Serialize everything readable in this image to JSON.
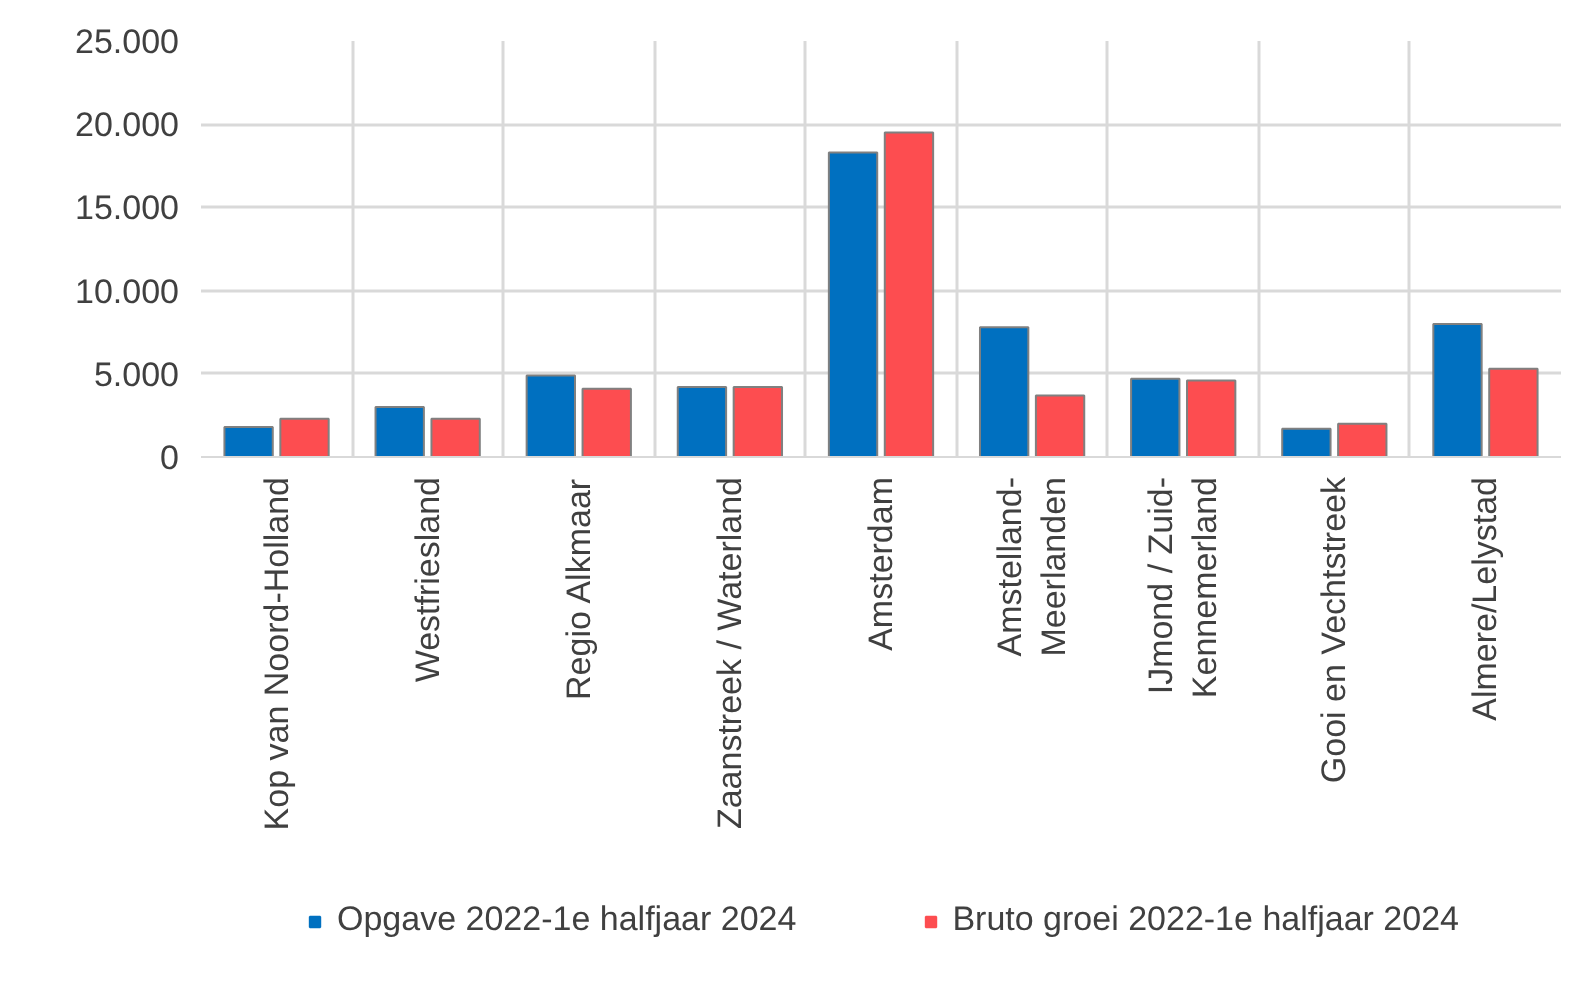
{
  "chart_data": {
    "type": "bar",
    "categories": [
      "Kop van Noord-Holland",
      "Westfriesland",
      "Regio Alkmaar",
      "Zaanstreek / Waterland",
      "Amsterdam",
      "Amstelland-\nMeerlanden",
      "IJmond / Zuid-\nKennemerland",
      "Gooi en Vechtstreek",
      "Almere/Lelystad"
    ],
    "series": [
      {
        "name": "Opgave 2022-1e halfjaar 2024",
        "color": "#0070c0",
        "values": [
          1800,
          3000,
          4900,
          4200,
          18300,
          7800,
          4700,
          1700,
          8000
        ]
      },
      {
        "name": "Bruto groei 2022-1e halfjaar 2024",
        "color": "#fd4d50",
        "values": [
          2300,
          2300,
          4100,
          4200,
          19500,
          3700,
          4600,
          2000,
          5300
        ]
      }
    ],
    "ylim": [
      0,
      25000
    ],
    "yticks": [
      {
        "value": 0,
        "label": "0"
      },
      {
        "value": 5000,
        "label": "5.000"
      },
      {
        "value": 10000,
        "label": "10.000"
      },
      {
        "value": 15000,
        "label": "15.000"
      },
      {
        "value": 20000,
        "label": "20.000"
      },
      {
        "value": 25000,
        "label": "25.000"
      }
    ],
    "grid": true,
    "legend": "bottom"
  }
}
